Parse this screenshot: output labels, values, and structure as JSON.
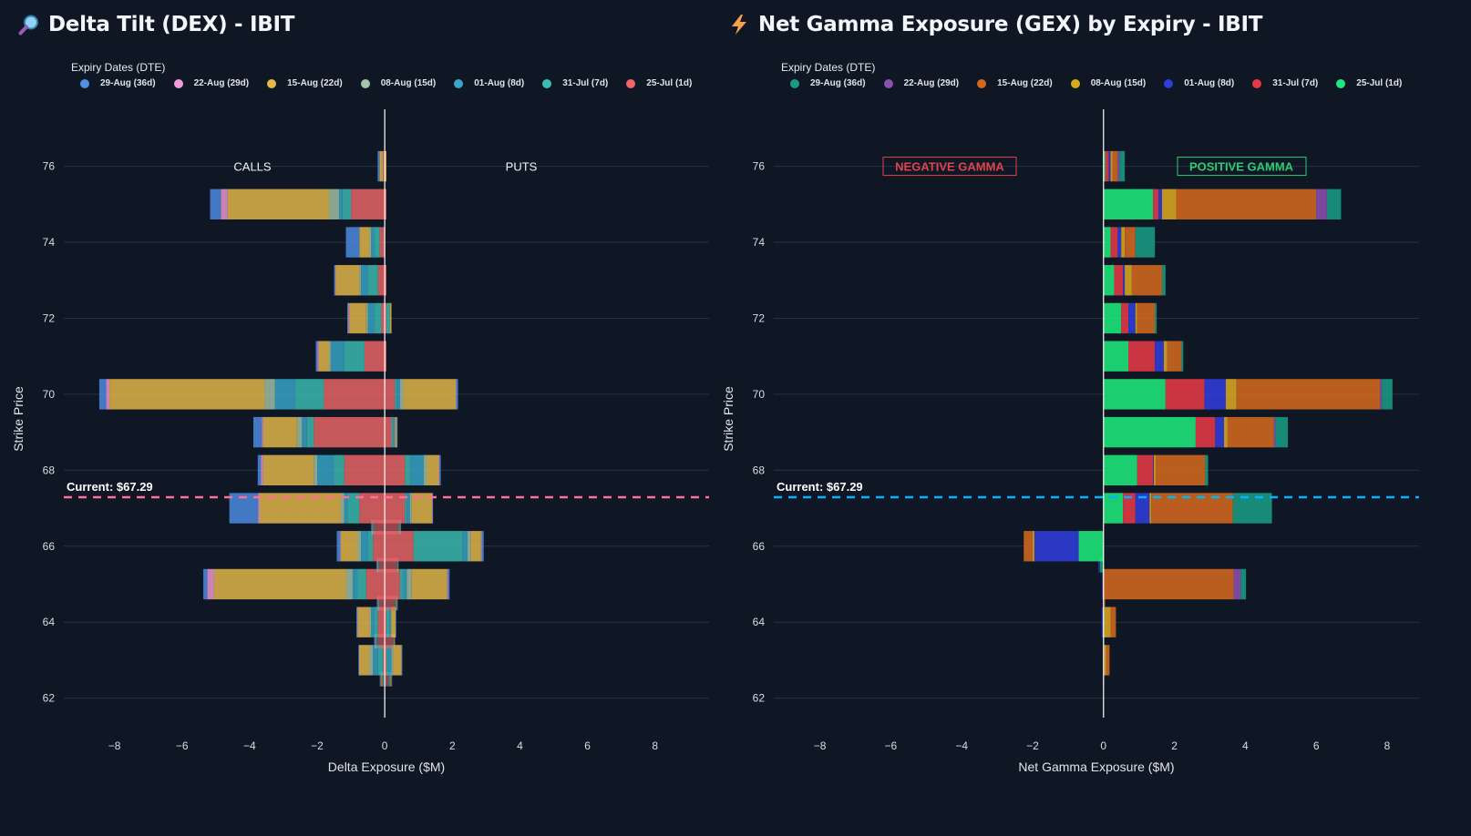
{
  "colors": {
    "background": "#0f1624",
    "dex_current_line": "#ff6f91",
    "gex_current_line": "#00b4ff",
    "negative_gamma": "#e0434c",
    "positive_gamma": "#2ecc71"
  },
  "dex_panel": {
    "title": "Delta Tilt (DEX) - IBIT",
    "icon": "magnifier-icon",
    "legend_title": "Expiry Dates (DTE)",
    "calls_label": "CALLS",
    "puts_label": "PUTS",
    "current_label": "Current: $67.29"
  },
  "gex_panel": {
    "title": "Net Gamma Exposure (GEX) by Expiry - IBIT",
    "icon": "lightning-icon",
    "legend_title": "Expiry Dates (DTE)",
    "negative_label": "NEGATIVE GAMMA",
    "positive_label": "POSITIVE GAMMA",
    "current_label": "Current: $67.29"
  },
  "chart_data": [
    {
      "type": "bar",
      "orientation": "horizontal",
      "barmode": "relative",
      "title": "Delta Tilt (DEX) - IBIT",
      "xlabel": "Delta Exposure ($M)",
      "ylabel": "Strike Price",
      "xlim": [
        -9.5,
        9.6
      ],
      "ylim": [
        61.2,
        77.5
      ],
      "xticks": [
        -8,
        -6,
        -4,
        -2,
        0,
        2,
        4,
        6,
        8
      ],
      "xtick_labels": [
        "−8",
        "−6",
        "−4",
        "−2",
        "0",
        "2",
        "4",
        "6",
        "8"
      ],
      "yticks": [
        62,
        64,
        66,
        68,
        70,
        72,
        74,
        76
      ],
      "grid": true,
      "legend_position": "top",
      "current_price": 67.29,
      "annotations": [
        "CALLS",
        "PUTS",
        "Current: $67.29"
      ],
      "categories": [
        62.5,
        63,
        63.5,
        64,
        64.5,
        65,
        65.5,
        66,
        66.5,
        67,
        68,
        69,
        70,
        71,
        72,
        73,
        74,
        75,
        76
      ],
      "series": [
        {
          "name": "29-Aug (36d)",
          "color": "#4f8fe6",
          "neg": [
            -0.02,
            -0.02,
            -0.03,
            -0.03,
            -0.03,
            -0.12,
            -0.02,
            -0.1,
            -0.02,
            -0.85,
            -0.1,
            -0.25,
            -0.2,
            -0.05,
            -0.03,
            -0.03,
            -0.4,
            -0.32,
            -0.06
          ],
          "pos": [
            0.02,
            0.02,
            0.01,
            0.02,
            0.02,
            0.05,
            0.01,
            0.06,
            0.01,
            0.02,
            0.04,
            0.02,
            0.05,
            0,
            0,
            0,
            0,
            0,
            0
          ]
        },
        {
          "name": "22-Aug (29d)",
          "color": "#f59ad8",
          "neg": [
            -0.01,
            -0.01,
            -0.01,
            -0.01,
            -0.01,
            -0.2,
            -0.01,
            -0.02,
            -0.01,
            -0.05,
            -0.06,
            -0.04,
            -0.1,
            -0.04,
            -0.03,
            -0.02,
            0,
            -0.2,
            0
          ],
          "pos": [
            0,
            0,
            0,
            0,
            0,
            0.02,
            0,
            0.02,
            0,
            0.01,
            0.02,
            0.01,
            0.02,
            0,
            0,
            0,
            0,
            0,
            0
          ]
        },
        {
          "name": "15-Aug (22d)",
          "color": "#e8b94a",
          "neg": [
            -0.05,
            -0.3,
            -0.02,
            -0.35,
            -0.01,
            -3.9,
            -0.01,
            -0.5,
            -0.02,
            -2.4,
            -1.5,
            -1.0,
            -4.6,
            -0.3,
            -0.5,
            -0.7,
            -0.3,
            -3.0,
            -0.1
          ],
          "pos": [
            0.05,
            0.25,
            0.03,
            0.12,
            0.03,
            1.05,
            0.02,
            0.3,
            0.02,
            0.6,
            0.35,
            0.05,
            1.55,
            0,
            0.05,
            0,
            0,
            0,
            0.05
          ]
        },
        {
          "name": "08-Aug (15d)",
          "color": "#a3c4a8",
          "neg": [
            -0.02,
            -0.1,
            -0.01,
            -0.05,
            -0.01,
            -0.2,
            -0.01,
            -0.1,
            -0.01,
            -0.1,
            -0.1,
            -0.15,
            -0.3,
            -0.05,
            -0.05,
            -0.05,
            -0.05,
            -0.3,
            0
          ],
          "pos": [
            0.01,
            0.05,
            0,
            0.02,
            0.01,
            0.15,
            0,
            0.1,
            0.01,
            0.05,
            0.1,
            0,
            0.1,
            0,
            0,
            0,
            0,
            0,
            0
          ]
        },
        {
          "name": "01-Aug (8d)",
          "color": "#38a7c9",
          "neg": [
            -0.02,
            -0.15,
            -0.02,
            -0.1,
            -0.01,
            -0.15,
            -0.02,
            -0.2,
            -0.02,
            -0.1,
            -0.5,
            -0.15,
            -0.6,
            -0.4,
            -0.2,
            -0.2,
            -0.1,
            -0.1,
            0
          ],
          "pos": [
            0.02,
            0.1,
            0.01,
            0.05,
            0.01,
            0.1,
            0.01,
            0.15,
            0.01,
            0.1,
            0.4,
            0.05,
            0.1,
            0,
            0,
            0,
            0,
            0,
            0
          ]
        },
        {
          "name": "31-Jul (7d)",
          "color": "#3cbfb3",
          "neg": [
            -0.02,
            -0.15,
            -0.03,
            -0.1,
            -0.02,
            -0.25,
            -0.03,
            -0.15,
            -0.03,
            -0.35,
            -0.3,
            -0.2,
            -0.85,
            -0.6,
            -0.2,
            -0.3,
            -0.15,
            -0.25,
            0
          ],
          "pos": [
            0.02,
            0.05,
            0.01,
            0.08,
            0.02,
            0.1,
            0.02,
            1.45,
            0.03,
            0.05,
            0.15,
            0.05,
            0.05,
            0,
            0.1,
            0,
            0,
            0,
            0
          ]
        },
        {
          "name": "25-Jul (1d)",
          "color": "#ef6669",
          "neg": [
            -0.01,
            -0.05,
            -0.2,
            -0.2,
            -0.15,
            -0.55,
            -0.15,
            -0.35,
            -0.3,
            -0.75,
            -1.2,
            -2.1,
            -1.8,
            -0.6,
            -0.1,
            -0.2,
            -0.15,
            -1.0,
            -0.05
          ],
          "pos": [
            0.1,
            0.05,
            0.25,
            0.05,
            0.3,
            0.45,
            0.35,
            0.85,
            0.4,
            0.6,
            0.6,
            0.2,
            0.3,
            0.05,
            0.05,
            0.05,
            0,
            0.05,
            0
          ]
        }
      ]
    },
    {
      "type": "bar",
      "orientation": "horizontal",
      "barmode": "relative",
      "title": "Net Gamma Exposure (GEX) by Expiry - IBIT",
      "xlabel": "Net Gamma Exposure ($M)",
      "ylabel": "Strike Price",
      "xlim": [
        -9.3,
        8.9
      ],
      "ylim": [
        61.2,
        77.5
      ],
      "xticks": [
        -8,
        -6,
        -4,
        -2,
        0,
        2,
        4,
        6,
        8
      ],
      "xtick_labels": [
        "−8",
        "−6",
        "−4",
        "−2",
        "0",
        "2",
        "4",
        "6",
        "8"
      ],
      "yticks": [
        62,
        64,
        66,
        68,
        70,
        72,
        74,
        76
      ],
      "grid": true,
      "legend_position": "top",
      "current_price": 67.29,
      "annotations": [
        "NEGATIVE GAMMA",
        "POSITIVE GAMMA",
        "Current: $67.29"
      ],
      "categories": [
        62.5,
        63,
        63.5,
        64,
        64.5,
        65,
        65.5,
        66,
        67,
        68,
        69,
        70,
        71,
        72,
        73,
        74,
        75,
        76
      ],
      "series": [
        {
          "name": "25-Jul (1d)",
          "color": "#1ee87a",
          "values": [
            0,
            0,
            0,
            0,
            0,
            0,
            -0.1,
            -0.7,
            0.55,
            0.95,
            2.6,
            1.75,
            0.7,
            0.5,
            0.3,
            0.2,
            1.4,
            0.05
          ]
        },
        {
          "name": "31-Jul (7d)",
          "color": "#e63946",
          "values": [
            0,
            0.02,
            0,
            0,
            0,
            -0.02,
            0,
            0,
            0.35,
            0.45,
            0.55,
            1.1,
            0.75,
            0.2,
            0.25,
            0.2,
            0.15,
            0.1
          ]
        },
        {
          "name": "01-Aug (8d)",
          "color": "#2f3ddb",
          "values": [
            0,
            0,
            0,
            -0.05,
            -0.02,
            -0.02,
            -0.05,
            -1.25,
            0.4,
            0.02,
            0.25,
            0.6,
            0.25,
            0.2,
            0.05,
            0.1,
            0.1,
            0.05
          ]
        },
        {
          "name": "08-Aug (15d)",
          "color": "#d9a920",
          "values": [
            0,
            0.05,
            0,
            0.2,
            0,
            0.02,
            0,
            -0.05,
            0.05,
            0.05,
            0.1,
            0.3,
            0.1,
            0.05,
            0.2,
            0.1,
            0.4,
            0.05
          ]
        },
        {
          "name": "15-Aug (22d)",
          "color": "#d2691e",
          "values": [
            0.02,
            0.1,
            0.02,
            0.15,
            0.05,
            3.65,
            0,
            -0.25,
            2.3,
            1.4,
            1.3,
            4.05,
            0.4,
            0.5,
            0.85,
            0.3,
            3.95,
            0.15
          ]
        },
        {
          "name": "22-Aug (29d)",
          "color": "#8e4fb0",
          "values": [
            0,
            0,
            0,
            0,
            0,
            0.2,
            0,
            0,
            0,
            0,
            0.05,
            0.05,
            0,
            0,
            0,
            0,
            0.3,
            0.05
          ]
        },
        {
          "name": "29-Aug (36d)",
          "color": "#1a9c84",
          "values": [
            0,
            0,
            0,
            0,
            0,
            0.15,
            0,
            0,
            1.1,
            0.08,
            0.35,
            0.3,
            0.05,
            0.05,
            0.1,
            0.55,
            0.4,
            0.15
          ]
        }
      ]
    }
  ]
}
